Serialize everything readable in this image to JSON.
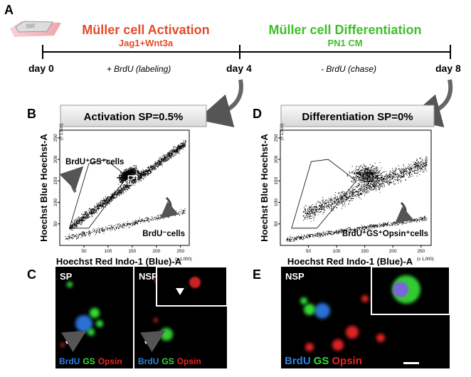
{
  "panel_labels": [
    "A",
    "B",
    "C",
    "D",
    "E"
  ],
  "timeline": {
    "activation_title": "Müller cell Activation",
    "activation_sub": "Jag1+Wnt3a",
    "differentiation_title": "Müller cell Differentiation",
    "differentiation_sub": "PN1 CM",
    "days": [
      "day 0",
      "day 4",
      "day 8"
    ],
    "phases": [
      "+ BrdU (labeling)",
      "- BrdU (chase)"
    ]
  },
  "plots": [
    {
      "box_title": "Activation  SP=0.5%",
      "y_label": "Hoechst Blue Hoechst-A",
      "x_label": "Hoechst Red Indo-1 (Blue)-A",
      "scale_note": "(x 1,000)",
      "xticks": [
        50,
        100,
        150,
        200,
        250
      ],
      "yticks": [
        50,
        100,
        150,
        200,
        250
      ],
      "annotations": [
        "BrdU⁺GS⁺cells",
        "NSP",
        "BrdU⁻cells"
      ]
    },
    {
      "box_title": "Differentiation  SP=0%",
      "y_label": "Hoechst Blue Hoechst-A",
      "x_label": "Hoechst Red Indo-1 (Blue)-A",
      "scale_note": "(x 1,000)",
      "xticks": [
        50,
        100,
        150,
        200,
        250
      ],
      "yticks": [
        50,
        100,
        150,
        200,
        250
      ],
      "annotations": [
        "BrdU⁺GS⁺Opsin⁺cells"
      ]
    }
  ],
  "images": [
    {
      "label": "SP",
      "stains": [
        "BrdU",
        "GS",
        "Opsin"
      ]
    },
    {
      "label": "NSP",
      "stains": [
        "BrdU",
        "GS",
        "Opsin"
      ]
    },
    {
      "label": "NSP",
      "stains": [
        "BrdU",
        "GS",
        "Opsin"
      ]
    }
  ]
}
